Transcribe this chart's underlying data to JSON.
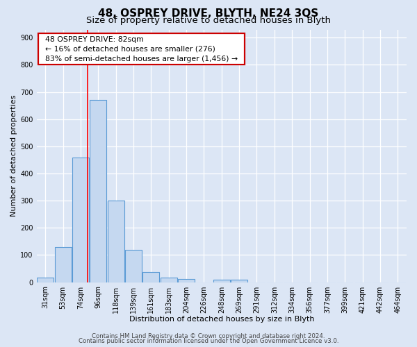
{
  "title": "48, OSPREY DRIVE, BLYTH, NE24 3QS",
  "subtitle": "Size of property relative to detached houses in Blyth",
  "xlabel": "Distribution of detached houses by size in Blyth",
  "ylabel": "Number of detached properties",
  "categories": [
    "31sqm",
    "53sqm",
    "74sqm",
    "96sqm",
    "118sqm",
    "139sqm",
    "161sqm",
    "183sqm",
    "204sqm",
    "226sqm",
    "248sqm",
    "269sqm",
    "291sqm",
    "312sqm",
    "334sqm",
    "356sqm",
    "377sqm",
    "399sqm",
    "421sqm",
    "442sqm",
    "464sqm"
  ],
  "values": [
    18,
    128,
    460,
    670,
    300,
    120,
    38,
    18,
    12,
    0,
    10,
    10,
    0,
    0,
    0,
    0,
    0,
    0,
    0,
    0,
    0
  ],
  "bar_color": "#c5d8f0",
  "bar_edge_color": "#5b9bd5",
  "bar_linewidth": 0.8,
  "red_line_x": 2.41,
  "annotation_title": "48 OSPREY DRIVE: 82sqm",
  "annotation_line1": "← 16% of detached houses are smaller (276)",
  "annotation_line2": "83% of semi-detached houses are larger (1,456) →",
  "annotation_box_facecolor": "#ffffff",
  "annotation_box_edgecolor": "#cc0000",
  "ylim": [
    0,
    930
  ],
  "yticks": [
    0,
    100,
    200,
    300,
    400,
    500,
    600,
    700,
    800,
    900
  ],
  "footer1": "Contains HM Land Registry data © Crown copyright and database right 2024.",
  "footer2": "Contains public sector information licensed under the Open Government Licence v3.0.",
  "fig_facecolor": "#dce6f5",
  "plot_facecolor": "#dce6f5",
  "grid_color": "#ffffff",
  "title_fontsize": 11,
  "subtitle_fontsize": 9.5,
  "axis_label_fontsize": 8,
  "tick_fontsize": 7,
  "annotation_fontsize": 7.8,
  "footer_fontsize": 6.2
}
